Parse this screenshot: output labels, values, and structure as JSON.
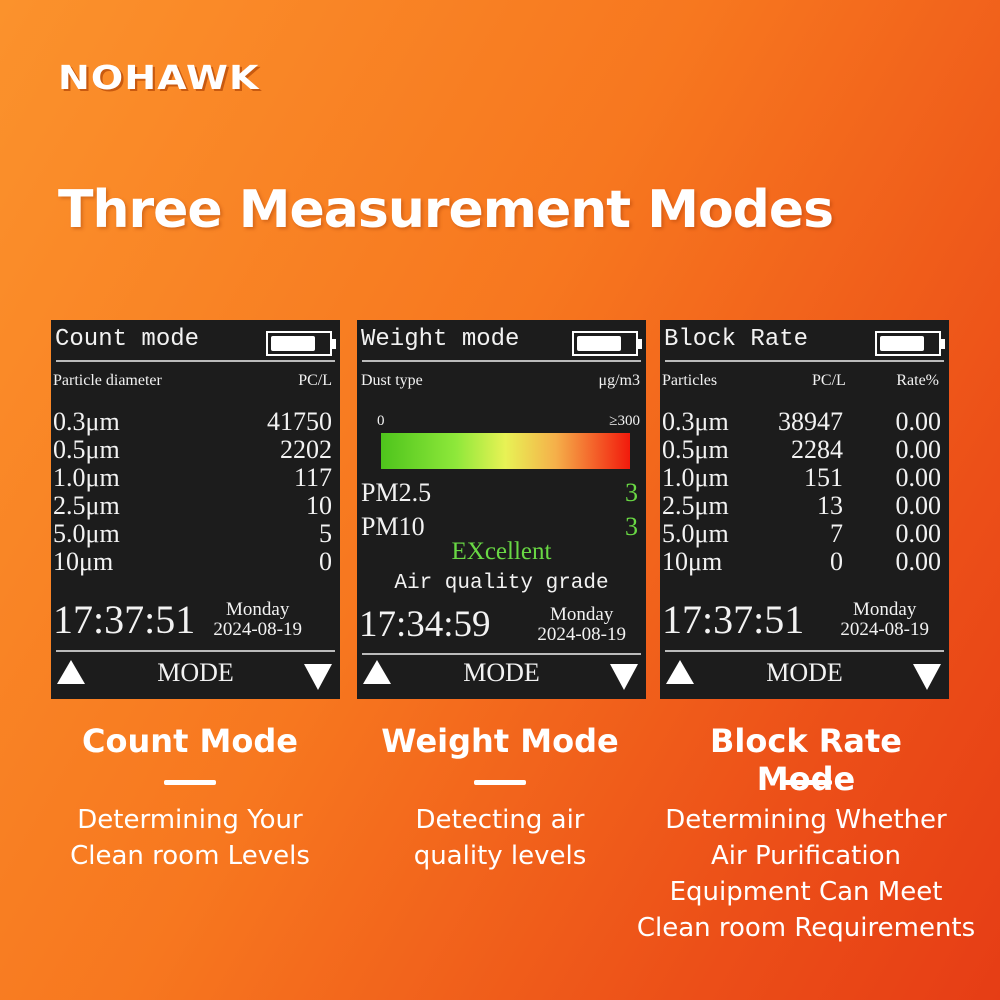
{
  "brand": "NOHAWK",
  "headline": "Three Measurement Modes",
  "screens": {
    "count": {
      "title": "Count mode",
      "col1": "Particle diameter",
      "col2": "PC/L",
      "rows": [
        {
          "size": "0.3μm",
          "value": "41750"
        },
        {
          "size": "0.5μm",
          "value": "2202"
        },
        {
          "size": "1.0μm",
          "value": "117"
        },
        {
          "size": "2.5μm",
          "value": "10"
        },
        {
          "size": "5.0μm",
          "value": "5"
        },
        {
          "size": "10μm",
          "value": "0"
        }
      ],
      "time": "17:37:51",
      "day": "Monday",
      "date": "2024-08-19",
      "mode": "MODE"
    },
    "weight": {
      "title": "Weight mode",
      "col1": "Dust type",
      "col2": "μg/m3",
      "scale_min": "0",
      "scale_max": "≥300",
      "pm25_label": "PM2.5",
      "pm25_value": "3",
      "pm10_label": "PM10",
      "pm10_value": "3",
      "grade": "EXcellent",
      "grade_label": "Air quality grade",
      "time": "17:34:59",
      "day": "Monday",
      "date": "2024-08-19",
      "mode": "MODE"
    },
    "block": {
      "title": "Block Rate",
      "col1": "Particles",
      "col2": "PC/L",
      "col3": "Rate%",
      "rows": [
        {
          "size": "0.3μm",
          "value": "38947",
          "rate": "0.00"
        },
        {
          "size": "0.5μm",
          "value": "2284",
          "rate": "0.00"
        },
        {
          "size": "1.0μm",
          "value": "151",
          "rate": "0.00"
        },
        {
          "size": "2.5μm",
          "value": "13",
          "rate": "0.00"
        },
        {
          "size": "5.0μm",
          "value": "7",
          "rate": "0.00"
        },
        {
          "size": "10μm",
          "value": "0",
          "rate": "0.00"
        }
      ],
      "time": "17:37:51",
      "day": "Monday",
      "date": "2024-08-19",
      "mode": "MODE"
    }
  },
  "captions": [
    {
      "title": "Count Mode",
      "lines": [
        "Determining Your",
        "Clean room Levels"
      ]
    },
    {
      "title": "Weight Mode",
      "lines": [
        "Detecting air",
        "quality levels"
      ]
    },
    {
      "title": "Block Rate Mode",
      "lines": [
        "Determining Whether",
        "Air Purification",
        "Equipment Can Meet",
        "Clean room Requirements"
      ]
    }
  ],
  "colors": {
    "good": "#69d844",
    "screen_bg": "#1c1c1c"
  }
}
